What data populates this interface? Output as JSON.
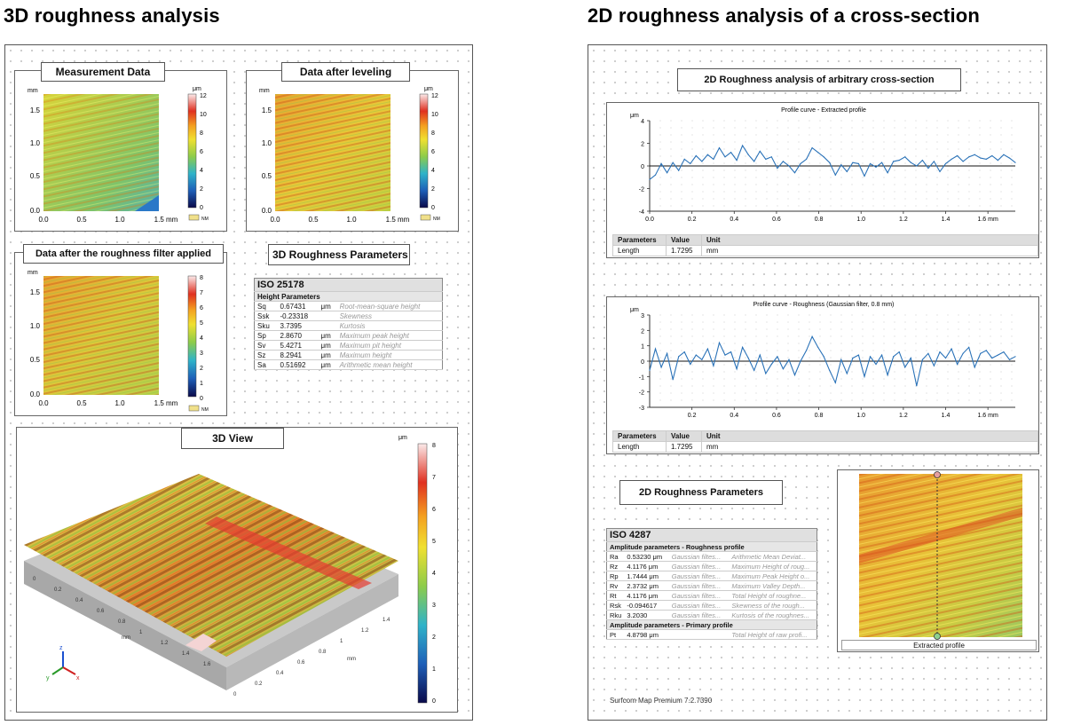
{
  "headings": {
    "left": "3D roughness analysis",
    "right": "2D roughness analysis of a cross-section"
  },
  "panels3d": {
    "measurement": {
      "title": "Measurement Data",
      "ylabel": "mm",
      "yticks": [
        "1.5",
        "1.0",
        "0.5",
        "0.0"
      ],
      "xticks": [
        "0.0",
        "0.5",
        "1.0",
        "1.5 mm"
      ],
      "cbar_unit": "μm",
      "cbar_ticks": [
        "12",
        "10",
        "8",
        "6",
        "4",
        "2",
        "0"
      ],
      "legend": "NM"
    },
    "leveling": {
      "title": "Data after leveling",
      "ylabel": "mm",
      "yticks": [
        "1.5",
        "1.0",
        "0.5",
        "0.0"
      ],
      "xticks": [
        "0.0",
        "0.5",
        "1.0",
        "1.5 mm"
      ],
      "cbar_unit": "μm",
      "cbar_ticks": [
        "12",
        "10",
        "8",
        "6",
        "4",
        "2",
        "0"
      ],
      "legend": "NM"
    },
    "filtered": {
      "title": "Data after the roughness filter applied",
      "ylabel": "mm",
      "yticks": [
        "1.5",
        "1.0",
        "0.5",
        "0.0"
      ],
      "xticks": [
        "0.0",
        "0.5",
        "1.0",
        "1.5 mm"
      ],
      "cbar_unit": "μm",
      "cbar_ticks": [
        "8",
        "7",
        "6",
        "5",
        "4",
        "3",
        "2",
        "1",
        "0"
      ],
      "legend": "NM"
    },
    "view3d": {
      "title": "3D View",
      "cbar_unit": "μm",
      "cbar_ticks": [
        "8",
        "7",
        "6",
        "5",
        "4",
        "3",
        "2",
        "1",
        "0"
      ],
      "axis_unit": "mm",
      "xticks": [
        "0",
        "0.2",
        "0.4",
        "0.6",
        "0.8",
        "1",
        "1.2",
        "1.4",
        "1.6"
      ],
      "yticks": [
        "0",
        "0.2",
        "0.4",
        "0.6",
        "0.8",
        "1",
        "1.2",
        "1.4"
      ]
    }
  },
  "params3d": {
    "title": "3D Roughness Parameters",
    "standard": "ISO 25178",
    "group": "Height Parameters",
    "rows": [
      {
        "name": "Sq",
        "value": "0.67431",
        "unit": "μm",
        "desc": "Root-mean-square height"
      },
      {
        "name": "Ssk",
        "value": "-0.23318",
        "unit": "",
        "desc": "Skewness"
      },
      {
        "name": "Sku",
        "value": "3.7395",
        "unit": "",
        "desc": "Kurtosis"
      },
      {
        "name": "Sp",
        "value": "2.8670",
        "unit": "μm",
        "desc": "Maximum peak height"
      },
      {
        "name": "Sv",
        "value": "5.4271",
        "unit": "μm",
        "desc": "Maximum pit height"
      },
      {
        "name": "Sz",
        "value": "8.2941",
        "unit": "μm",
        "desc": "Maximum height"
      },
      {
        "name": "Sa",
        "value": "0.51692",
        "unit": "μm",
        "desc": "Arithmetic mean height"
      }
    ]
  },
  "report2d": {
    "title": "2D Roughness analysis of arbitrary cross-section",
    "footer": "Surfcom Map Premium 7.2.7390",
    "extracted_label": "Extracted profile",
    "params_title": "2D Roughness Parameters"
  },
  "chart_data": [
    {
      "type": "line",
      "title": "Profile curve - Extracted profile",
      "ylabel": "μm",
      "ylim": [
        -4,
        4
      ],
      "xlim": [
        0,
        1.7295
      ],
      "yticks": [
        "4",
        "2",
        "0",
        "-2",
        "-4"
      ],
      "xticks": [
        "0.0",
        "0.2",
        "0.4",
        "0.6",
        "0.8",
        "1.0",
        "1.2",
        "1.4",
        "1.6 mm"
      ],
      "series": [
        {
          "values": [
            -1.2,
            -0.8,
            0.2,
            -0.6,
            0.3,
            -0.4,
            0.6,
            0.2,
            0.9,
            0.4,
            1.0,
            0.6,
            1.6,
            0.8,
            1.2,
            0.5,
            1.8,
            1.0,
            0.4,
            1.3,
            0.6,
            0.8,
            -0.2,
            0.4,
            0.0,
            -0.6,
            0.2,
            0.6,
            1.6,
            1.2,
            0.8,
            0.3,
            -0.8,
            0.1,
            -0.5,
            0.3,
            0.2,
            -0.9,
            0.2,
            -0.1,
            0.3,
            -0.6,
            0.4,
            0.5,
            0.8,
            0.3,
            0.0,
            0.5,
            -0.2,
            0.4,
            -0.5,
            0.2,
            0.6,
            0.9,
            0.4,
            0.8,
            1.0,
            0.7,
            0.6,
            0.9,
            0.5,
            1.0,
            0.7,
            0.3
          ]
        }
      ]
    },
    {
      "type": "line",
      "title": "Profile curve - Roughness (Gaussian filter, 0.8 mm)",
      "ylabel": "μm",
      "ylim": [
        -3,
        3
      ],
      "xlim": [
        0,
        1.7295
      ],
      "yticks": [
        "3",
        "2",
        "1",
        "0",
        "-1",
        "-2",
        "-3"
      ],
      "xticks": [
        "0.2",
        "0.4",
        "0.6",
        "0.8",
        "1.0",
        "1.2",
        "1.4",
        "1.6 mm"
      ],
      "series": [
        {
          "values": [
            -0.6,
            0.8,
            -0.4,
            0.5,
            -1.2,
            0.3,
            0.6,
            -0.2,
            0.4,
            0.1,
            0.8,
            -0.3,
            1.2,
            0.4,
            0.6,
            -0.5,
            0.9,
            0.2,
            -0.6,
            0.4,
            -0.8,
            -0.2,
            0.3,
            -0.5,
            0.1,
            -0.9,
            0.0,
            0.7,
            1.6,
            0.9,
            0.3,
            -0.6,
            -1.4,
            0.1,
            -0.8,
            0.2,
            0.4,
            -1.0,
            0.3,
            -0.2,
            0.4,
            -0.9,
            0.3,
            0.6,
            -0.4,
            0.2,
            -1.6,
            0.1,
            0.5,
            -0.3,
            0.6,
            0.2,
            0.8,
            -0.2,
            0.5,
            0.9,
            -0.4,
            0.5,
            0.7,
            0.2,
            0.4,
            0.6,
            0.1,
            0.3
          ]
        }
      ]
    }
  ],
  "profile_tables": [
    {
      "headers": [
        "Parameters",
        "Value",
        "Unit"
      ],
      "row": [
        "Length",
        "1.7295",
        "mm"
      ]
    },
    {
      "headers": [
        "Parameters",
        "Value",
        "Unit"
      ],
      "row": [
        "Length",
        "1.7295",
        "mm"
      ]
    }
  ],
  "params2d": {
    "standard": "ISO 4287",
    "group1": "Amplitude parameters - Roughness profile",
    "rows1": [
      {
        "name": "Ra",
        "value": "0.53230 μm",
        "filter": "Gaussian filtes...",
        "desc": "Arithmetic Mean Deviat..."
      },
      {
        "name": "Rz",
        "value": "4.1176 μm",
        "filter": "Gaussian filtes...",
        "desc": "Maximum Height of roug..."
      },
      {
        "name": "Rp",
        "value": "1.7444 μm",
        "filter": "Gaussian filtes...",
        "desc": "Maximum Peak Height o..."
      },
      {
        "name": "Rv",
        "value": "2.3732 μm",
        "filter": "Gaussian filtes...",
        "desc": "Maximum Valley Depth..."
      },
      {
        "name": "Rt",
        "value": "4.1176 μm",
        "filter": "Gaussian filtes...",
        "desc": "Total Height of roughne..."
      },
      {
        "name": "Rsk",
        "value": "-0.094617",
        "filter": "Gaussian filtes...",
        "desc": "Skewness of the rough..."
      },
      {
        "name": "Rku",
        "value": "3.2030",
        "filter": "Gaussian filtes...",
        "desc": "Kurtosis of the roughnes..."
      }
    ],
    "group2": "Amplitude parameters - Primary profile",
    "rows2": [
      {
        "name": "Pt",
        "value": "4.8798 μm",
        "filter": "",
        "desc": "Total Height of raw profi..."
      }
    ]
  }
}
